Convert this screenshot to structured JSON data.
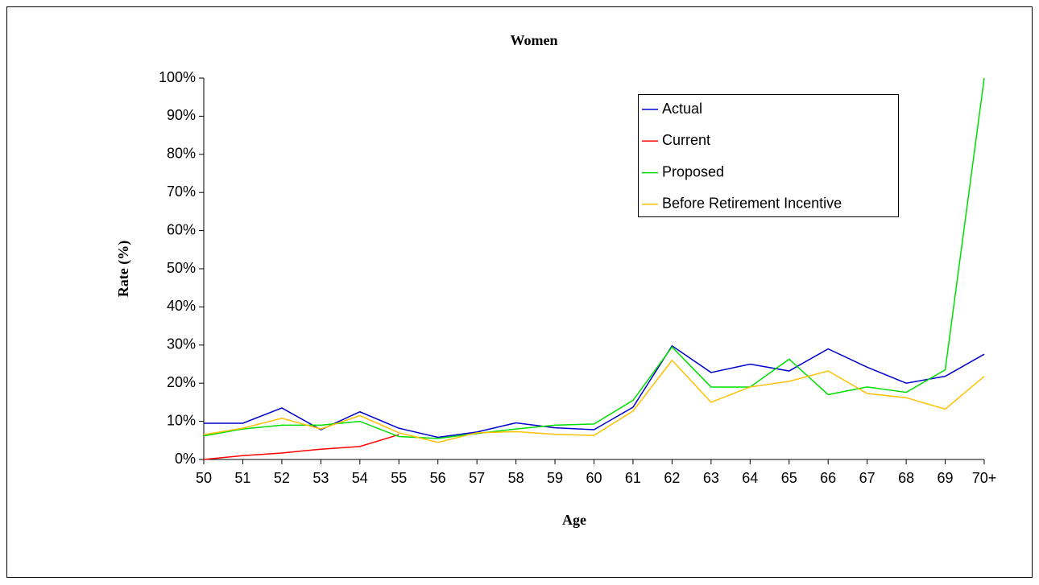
{
  "chart_data": {
    "type": "line",
    "title": "Women",
    "xlabel": "Age",
    "ylabel": "Rate (%)",
    "categories": [
      "50",
      "51",
      "52",
      "53",
      "54",
      "55",
      "56",
      "57",
      "58",
      "59",
      "60",
      "61",
      "62",
      "63",
      "64",
      "65",
      "66",
      "67",
      "68",
      "69",
      "70+"
    ],
    "series": [
      {
        "name": "Actual",
        "color": "#0000cc",
        "values": [
          9.5,
          9.5,
          13.5,
          7.8,
          12.5,
          8.2,
          5.8,
          7.2,
          9.6,
          8.3,
          7.8,
          13.7,
          29.8,
          22.8,
          25,
          23.2,
          29,
          24.2,
          20,
          21.8,
          27.6
        ]
      },
      {
        "name": "Current",
        "color": "#ff0000",
        "values": [
          0,
          1,
          1.7,
          2.7,
          3.4,
          6.5,
          null,
          null,
          null,
          null,
          null,
          null,
          null,
          null,
          null,
          null,
          null,
          null,
          null,
          null,
          null
        ]
      },
      {
        "name": "Proposed",
        "color": "#00dd00",
        "values": [
          6.2,
          8,
          9,
          9,
          10,
          6,
          5.5,
          6.8,
          8,
          9,
          9.3,
          15.5,
          29.5,
          19,
          19,
          26.3,
          17,
          19,
          17.6,
          23.5,
          100
        ]
      },
      {
        "name": "Before Retirement Incentive",
        "color": "#ffc000",
        "values": [
          6.5,
          8.2,
          10.8,
          8,
          11.5,
          7,
          4.5,
          7,
          7.3,
          6.6,
          6.3,
          12.7,
          26,
          15,
          19,
          20.5,
          23.2,
          17.3,
          16.2,
          13.2,
          21.8
        ]
      }
    ],
    "ylim": [
      0,
      100
    ],
    "yticks": [
      {
        "value": 0,
        "label": "0%"
      },
      {
        "value": 10,
        "label": "10%"
      },
      {
        "value": 20,
        "label": "20%"
      },
      {
        "value": 30,
        "label": "30%"
      },
      {
        "value": 40,
        "label": "40%"
      },
      {
        "value": 50,
        "label": "50%"
      },
      {
        "value": 60,
        "label": "60%"
      },
      {
        "value": 70,
        "label": "70%"
      },
      {
        "value": 80,
        "label": "80%"
      },
      {
        "value": 90,
        "label": "90%"
      },
      {
        "value": 100,
        "label": "100%"
      }
    ],
    "grid": false,
    "legend": "upper right"
  }
}
